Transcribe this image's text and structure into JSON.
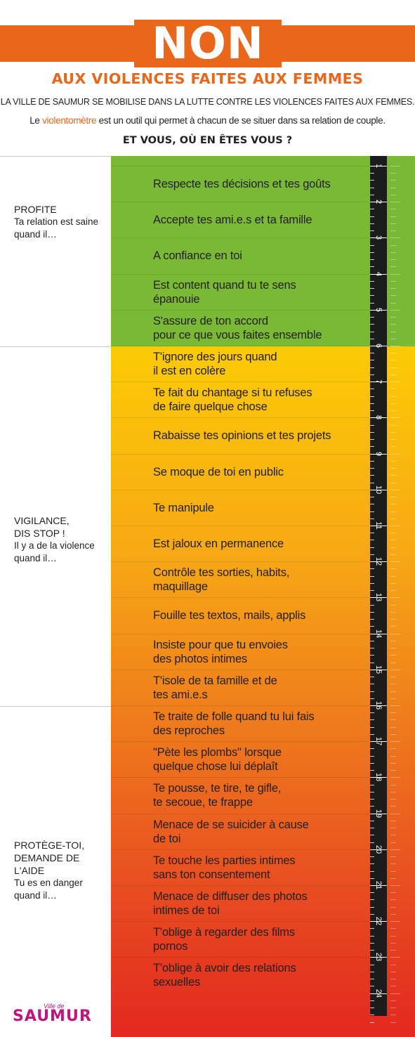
{
  "header": {
    "title": "NON !",
    "subtitle": "AUX VIOLENCES FAITES AUX FEMMES",
    "intro_line": "LA VILLE DE SAUMUR SE MOBILISE DANS LA LUTTE CONTRE LES VIOLENCES FAITES AUX FEMMES.",
    "tool_prefix": "Le ",
    "tool_name": "violentomètre",
    "tool_suffix": " est un outil qui permet à chacun de se situer dans sa relation de couple.",
    "question": "ET VOUS, OÙ EN ÊTES VOUS ?"
  },
  "zones": [
    {
      "title": "PROFITE",
      "text_line1": "Ta relation est saine",
      "text_line2": "quand il…"
    },
    {
      "title_line1": "VIGILANCE,",
      "title_line2": "DIS STOP !",
      "text_line1": "Il y a de la violence",
      "text_line2": "quand il…"
    },
    {
      "title_line1": "PROTÈGE-TOI,",
      "title_line2": "DEMANDE DE L'AIDE",
      "text_line1": "Tu es en danger",
      "text_line2": "quand il…"
    }
  ],
  "items": [
    {
      "line1": "Respecte tes décisions et tes goûts",
      "line2": ""
    },
    {
      "line1": "Accepte tes ami.e.s et ta famille",
      "line2": ""
    },
    {
      "line1": "A confiance en toi",
      "line2": ""
    },
    {
      "line1": "Est content quand tu te sens",
      "line2": "épanouie"
    },
    {
      "line1": "S'assure de ton accord",
      "line2": "pour ce que vous faites ensemble"
    },
    {
      "line1": "T'ignore des jours quand",
      "line2": "il est en colère"
    },
    {
      "line1": "Te fait du chantage si tu refuses",
      "line2": "de faire quelque chose"
    },
    {
      "line1": "Rabaisse tes opinions et tes projets",
      "line2": ""
    },
    {
      "line1": "Se moque de toi en public",
      "line2": ""
    },
    {
      "line1": "Te manipule",
      "line2": ""
    },
    {
      "line1": "Est jaloux en permanence",
      "line2": ""
    },
    {
      "line1": "Contrôle tes sorties, habits,",
      "line2": "maquillage"
    },
    {
      "line1": "Fouille tes textos, mails, applis",
      "line2": ""
    },
    {
      "line1": "Insiste pour que tu envoies",
      "line2": "des photos intimes"
    },
    {
      "line1": "T'isole de ta famille et de",
      "line2": "tes ami.e.s"
    },
    {
      "line1": "Te traite de folle quand tu lui fais",
      "line2": "des reproches"
    },
    {
      "line1": "\"Pète les plombs\" lorsque",
      "line2": "quelque chose lui déplaît"
    },
    {
      "line1": "Te pousse, te tire, te gifle,",
      "line2": "te secoue, te frappe"
    },
    {
      "line1": "Menace de se suicider à cause",
      "line2": "de toi"
    },
    {
      "line1": "Te touche les parties intimes",
      "line2": "sans ton consentement"
    },
    {
      "line1": "Menace de diffuser des photos",
      "line2": "intimes de toi"
    },
    {
      "line1": "T'oblige à regarder des films",
      "line2": "pornos"
    },
    {
      "line1": "T'oblige à avoir des relations",
      "line2": "sexuelles"
    }
  ],
  "scale": [
    "1",
    "2",
    "3",
    "4",
    "5",
    "6",
    "7",
    "8",
    "9",
    "10",
    "11",
    "12",
    "13",
    "14",
    "15",
    "16",
    "17",
    "18",
    "19",
    "20",
    "21",
    "22",
    "23",
    "24"
  ],
  "logo": {
    "small": "Ville de",
    "big": "SAUMUR"
  },
  "colors": {
    "orange": "#e8671a",
    "green": "#7ab935",
    "yellow": "#fccb05",
    "red": "#e3281f",
    "ruler": "#1c1c1c",
    "logo": "#c2147e"
  }
}
